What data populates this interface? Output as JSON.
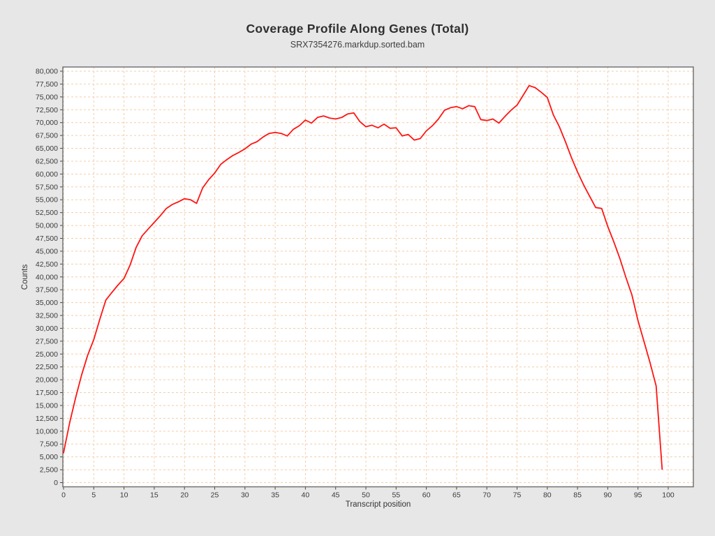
{
  "chart_data": {
    "type": "line",
    "title": "Coverage Profile Along Genes (Total)",
    "subtitle": "SRX7354276.markdup.sorted.bam",
    "xlabel": "Transcript position",
    "ylabel": "Counts",
    "xlim": [
      0,
      100
    ],
    "ylim": [
      0,
      80000
    ],
    "x_tick_step": 5,
    "y_tick_step": 2500,
    "x_tick_labels": [
      "0",
      "5",
      "10",
      "15",
      "20",
      "25",
      "30",
      "35",
      "40",
      "45",
      "50",
      "55",
      "60",
      "65",
      "70",
      "75",
      "80",
      "85",
      "90",
      "95",
      "100"
    ],
    "y_tick_labels": [
      "0",
      "2,500",
      "5,000",
      "7,500",
      "10,000",
      "12,500",
      "15,000",
      "17,500",
      "20,000",
      "22,500",
      "25,000",
      "27,500",
      "30,000",
      "32,500",
      "35,000",
      "37,500",
      "40,000",
      "42,500",
      "45,000",
      "47,500",
      "50,000",
      "52,500",
      "55,000",
      "57,500",
      "60,000",
      "62,500",
      "65,000",
      "67,500",
      "70,000",
      "72,500",
      "75,000",
      "77,500",
      "80,000"
    ],
    "grid": {
      "style": "dashed",
      "color": "#f3cdaa",
      "shown": true
    },
    "legend": "none",
    "series": [
      {
        "name": "SRX7354276.markdup.sorted.bam",
        "color": "#ff1412",
        "x": [
          0,
          1,
          2,
          3,
          4,
          5,
          6,
          7,
          8,
          9,
          10,
          11,
          12,
          13,
          14,
          15,
          16,
          17,
          18,
          19,
          20,
          21,
          22,
          23,
          24,
          25,
          26,
          27,
          28,
          29,
          30,
          31,
          32,
          33,
          34,
          35,
          36,
          37,
          38,
          39,
          40,
          41,
          42,
          43,
          44,
          45,
          46,
          47,
          48,
          49,
          50,
          51,
          52,
          53,
          54,
          55,
          56,
          57,
          58,
          59,
          60,
          61,
          62,
          63,
          64,
          65,
          66,
          67,
          68,
          69,
          70,
          71,
          72,
          73,
          74,
          75,
          76,
          77,
          78,
          79,
          80,
          81,
          82,
          83,
          84,
          85,
          86,
          87,
          88,
          89,
          90,
          91,
          92,
          93,
          94,
          95,
          96,
          97,
          98,
          99
        ],
        "values": [
          5800,
          11600,
          16500,
          21000,
          24800,
          27800,
          31800,
          35500,
          37000,
          38400,
          39700,
          42300,
          45700,
          48000,
          49300,
          50600,
          51900,
          53300,
          54100,
          54600,
          55200,
          55000,
          54300,
          57300,
          58900,
          60200,
          61900,
          62800,
          63600,
          64200,
          64900,
          65800,
          66300,
          67200,
          67900,
          68100,
          67900,
          67400,
          68700,
          69400,
          70500,
          69900,
          71000,
          71300,
          70900,
          70700,
          71000,
          71700,
          71900,
          70200,
          69200,
          69500,
          69000,
          69700,
          68900,
          69000,
          67400,
          67700,
          66600,
          66900,
          68400,
          69400,
          70700,
          72400,
          72900,
          73100,
          72700,
          73300,
          73100,
          70600,
          70400,
          70700,
          69900,
          71200,
          72400,
          73400,
          75300,
          77200,
          76800,
          75900,
          74900,
          71500,
          69200,
          66300,
          63200,
          60400,
          57900,
          55700,
          53500,
          53300,
          49800,
          46800,
          43600,
          39900,
          36500,
          31500,
          27400,
          23300,
          18800,
          2600
        ]
      }
    ]
  },
  "colors": {
    "page_background": "#e7e7e7",
    "plot_background": "#ffffff",
    "plot_border": "#737373",
    "axis_tick": "#444444",
    "tick_text": "#3a3a3a",
    "gridline": "#f3cdaa",
    "line": "#ff1412"
  }
}
